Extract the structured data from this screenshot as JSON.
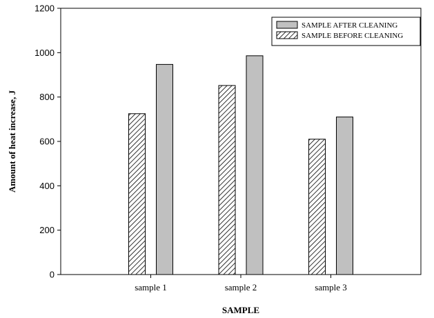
{
  "chart_data": {
    "type": "bar",
    "categories": [
      "sample 1",
      "sample 2",
      "sample 3"
    ],
    "series": [
      {
        "name": "SAMPLE BEFORE CLEANING",
        "values": [
          725,
          852,
          610
        ],
        "pattern": "hatch",
        "color": "#ffffff"
      },
      {
        "name": "SAMPLE AFTER CLEANING",
        "values": [
          947,
          986,
          710
        ],
        "pattern": "solid",
        "color": "#c0c0c0"
      }
    ],
    "legend_order": [
      "SAMPLE AFTER CLEANING",
      "SAMPLE BEFORE CLEANING"
    ],
    "xlabel": "SAMPLE",
    "ylabel": "Amount of heat increase, J",
    "ylim": [
      0,
      1200
    ],
    "yticks": [
      0,
      200,
      400,
      600,
      800,
      1000,
      1200
    ],
    "grid": false,
    "legend_position": "top-right"
  }
}
